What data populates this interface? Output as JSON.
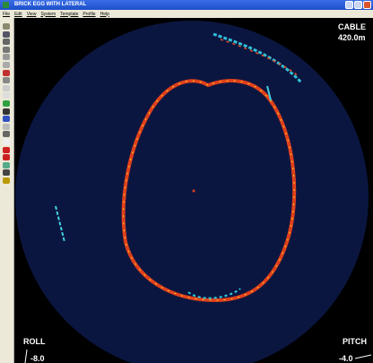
{
  "window": {
    "title": "BRICK EGG WITH LATERAL"
  },
  "menu": [
    "File",
    "Edit",
    "View",
    "System",
    "Template",
    "Profile",
    "Help"
  ],
  "overlay": {
    "cable_label": "CABLE",
    "cable_value": "420.0m",
    "roll_label": "ROLL",
    "roll_value": "-8.0",
    "pitch_label": "PITCH",
    "pitch_value": "-4.0"
  }
}
